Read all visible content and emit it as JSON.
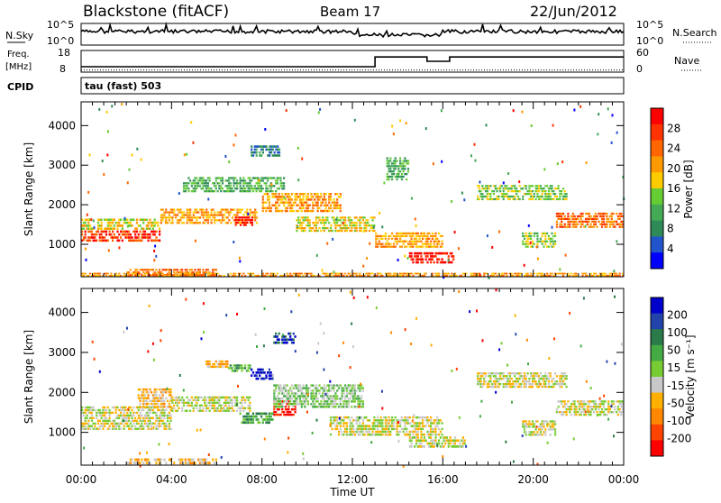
{
  "header": {
    "station": "Blackstone (fitACF)",
    "beam": "Beam 17",
    "date": "22/Jun/2012"
  },
  "top_panels": {
    "nsky_label": "N.Sky",
    "nsearch_label": "N.Search",
    "noise_left_top": "10^5",
    "noise_left_bottom": "10^0",
    "noise_right_top": "10^5",
    "noise_right_bottom": "10^0",
    "freq_label": "Freq.",
    "freq_unit": "[MHz]",
    "freq_top": "18",
    "freq_bottom": "8",
    "nave_label": "Nave",
    "nave_top": "60",
    "nave_bottom": "0",
    "cpid_label": "CPID",
    "cpid_value": "tau (fast) 503"
  },
  "colors": {
    "power": [
      "#0000ff",
      "#2255cc",
      "#2e8b57",
      "#44aa55",
      "#66cc33",
      "#ffcc00",
      "#ff9900",
      "#ff6600",
      "#ff3300",
      "#ff0000"
    ],
    "velocity": [
      "#0000cc",
      "#2244aa",
      "#2a7a4a",
      "#44aa44",
      "#77cc33",
      "#c8c8c8",
      "#ffb000",
      "#ff8800",
      "#ff4400",
      "#ff0000"
    ]
  },
  "chart_data": [
    {
      "type": "line",
      "title": "N.Sky / N.Search",
      "x": [
        "00:00",
        "04:00",
        "08:00",
        "12:00",
        "16:00",
        "20:00",
        "00:00"
      ],
      "series": [
        {
          "name": "N.Sky",
          "values": [
            15000,
            22000,
            18000,
            9000,
            12000,
            8000,
            14000
          ]
        }
      ],
      "ylim_labels": [
        "10^0",
        "10^5"
      ]
    },
    {
      "type": "line",
      "title": "Freq. / Nave",
      "x_hours": [
        0,
        13,
        13,
        15.3,
        15.3,
        16.3,
        16.3,
        24
      ],
      "series": [
        {
          "name": "Freq. [MHz]",
          "values": [
            10.5,
            10.5,
            15,
            15,
            13,
            13,
            15,
            15
          ]
        },
        {
          "name": "Nave",
          "values": [
            6,
            6,
            6,
            6,
            6,
            6,
            6,
            6
          ]
        }
      ]
    },
    {
      "type": "heatmap",
      "quantity": "Power",
      "xlabel": "",
      "ylabel": "Slant Range [km]",
      "xlim_hours": [
        0,
        24
      ],
      "ylim_km": [
        180,
        4600
      ],
      "yticks": [
        "1000",
        "2000",
        "3000",
        "4000"
      ],
      "colorbar_label": "Power [dB]",
      "colorbar_ticks": [
        "4",
        "8",
        "12",
        "16",
        "20",
        "24",
        "28"
      ],
      "bands": [
        {
          "t0": 0.0,
          "t1": 3.5,
          "r0": 1050,
          "r1": 1350,
          "level": 8
        },
        {
          "t0": 0.0,
          "t1": 3.5,
          "r0": 1350,
          "r1": 1650,
          "level": 5
        },
        {
          "t0": 3.5,
          "t1": 7.8,
          "r0": 1500,
          "r1": 1900,
          "level": 6
        },
        {
          "t0": 6.8,
          "t1": 7.6,
          "r0": 1450,
          "r1": 1700,
          "level": 9
        },
        {
          "t0": 2.0,
          "t1": 6.0,
          "r0": 180,
          "r1": 380,
          "level": 7
        },
        {
          "t0": 4.5,
          "t1": 9.0,
          "r0": 2300,
          "r1": 2700,
          "level": 3
        },
        {
          "t0": 8.0,
          "t1": 11.5,
          "r0": 1800,
          "r1": 2300,
          "level": 6
        },
        {
          "t0": 7.5,
          "t1": 8.8,
          "r0": 3200,
          "r1": 3500,
          "level": 2
        },
        {
          "t0": 9.5,
          "t1": 13.0,
          "r0": 1300,
          "r1": 1700,
          "level": 5
        },
        {
          "t0": 13.0,
          "t1": 16.0,
          "r0": 900,
          "r1": 1300,
          "level": 6
        },
        {
          "t0": 14.5,
          "t1": 16.5,
          "r0": 500,
          "r1": 800,
          "level": 9
        },
        {
          "t0": 13.5,
          "t1": 14.5,
          "r0": 2600,
          "r1": 3200,
          "level": 3
        },
        {
          "t0": 17.5,
          "t1": 21.5,
          "r0": 2100,
          "r1": 2500,
          "level": 4
        },
        {
          "t0": 21.0,
          "t1": 24.0,
          "r0": 1400,
          "r1": 1800,
          "level": 7
        },
        {
          "t0": 19.5,
          "t1": 21.0,
          "r0": 900,
          "r1": 1300,
          "level": 4
        },
        {
          "t0": 0.0,
          "t1": 24.0,
          "r0": 180,
          "r1": 280,
          "level": 6
        }
      ]
    },
    {
      "type": "heatmap",
      "quantity": "Velocity",
      "xlabel": "Time UT",
      "ylabel": "Slant Range [km]",
      "xlim_hours": [
        0,
        24
      ],
      "ylim_km": [
        180,
        4600
      ],
      "xticks": [
        "00:00",
        "04:00",
        "08:00",
        "12:00",
        "16:00",
        "20:00",
        "00:00"
      ],
      "yticks": [
        "1000",
        "2000",
        "3000",
        "4000"
      ],
      "colorbar_label": "Velocity [m s⁻¹]",
      "colorbar_ticks": [
        "200",
        "100",
        "50",
        "15",
        "-15",
        "-50",
        "-100",
        "-200"
      ],
      "bands": [
        {
          "t0": 0.0,
          "t1": 4.0,
          "r0": 1050,
          "r1": 1650,
          "level": 5
        },
        {
          "t0": 2.5,
          "t1": 4.0,
          "r0": 1600,
          "r1": 2100,
          "level": 6
        },
        {
          "t0": 4.0,
          "t1": 7.5,
          "r0": 1500,
          "r1": 1900,
          "level": 5
        },
        {
          "t0": 5.5,
          "t1": 6.5,
          "r0": 2600,
          "r1": 2800,
          "level": 6
        },
        {
          "t0": 6.5,
          "t1": 7.5,
          "r0": 2500,
          "r1": 2700,
          "level": 3
        },
        {
          "t0": 7.5,
          "t1": 8.5,
          "r0": 2300,
          "r1": 2600,
          "level": 0
        },
        {
          "t0": 8.5,
          "t1": 9.5,
          "r0": 3200,
          "r1": 3500,
          "level": 1
        },
        {
          "t0": 8.5,
          "t1": 9.5,
          "r0": 1400,
          "r1": 1800,
          "level": 9
        },
        {
          "t0": 7.0,
          "t1": 8.5,
          "r0": 1200,
          "r1": 1500,
          "level": 3
        },
        {
          "t0": 2.0,
          "t1": 6.0,
          "r0": 180,
          "r1": 350,
          "level": 6
        },
        {
          "t0": 8.5,
          "t1": 12.5,
          "r0": 1600,
          "r1": 2200,
          "level": 4
        },
        {
          "t0": 11.0,
          "t1": 16.0,
          "r0": 900,
          "r1": 1400,
          "level": 5
        },
        {
          "t0": 14.5,
          "t1": 17.0,
          "r0": 600,
          "r1": 900,
          "level": 5
        },
        {
          "t0": 17.5,
          "t1": 21.5,
          "r0": 2100,
          "r1": 2500,
          "level": 5
        },
        {
          "t0": 21.0,
          "t1": 24.0,
          "r0": 1400,
          "r1": 1800,
          "level": 5
        },
        {
          "t0": 19.5,
          "t1": 21.0,
          "r0": 900,
          "r1": 1300,
          "level": 5
        }
      ]
    }
  ]
}
